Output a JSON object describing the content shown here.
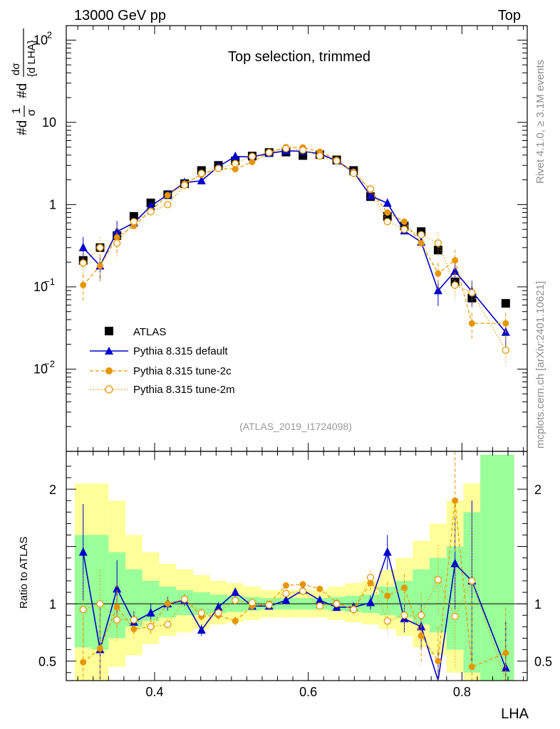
{
  "header": {
    "left": "13000 GeV pp",
    "right": "Top"
  },
  "side": {
    "rivet": "Rivet 4.1.0, ≥ 3.1M events",
    "mcplots": "mcplots.cern.ch [arXiv:2401.10621]"
  },
  "colors": {
    "atlas": "#000000",
    "default": "#0000cc",
    "tune2c": "#e69500",
    "tune2m": "#e69500",
    "band_inner": "#99ff99",
    "band_outer": "#ffff99"
  },
  "chart_data": {
    "type": "line",
    "title": "Top selection, trimmed",
    "analysis_id": "(ATLAS_2019_I1724098)",
    "xlabel": "LHA",
    "ylabel": "1/σ dσ/d LHA",
    "ylabel_parts": {
      "d": "d",
      "sigma": "σ",
      "one": "1",
      "hash": "#",
      "dlha": "{d LHA}"
    },
    "ratio_ylabel": "Ratio to ATLAS",
    "xlim": [
      0.285,
      0.885
    ],
    "ylim": [
      0.001,
      150
    ],
    "ratio_ylim": [
      0.33,
      2.33
    ],
    "yscale": "log",
    "x_ticks": [
      {
        "v": 0.4,
        "label": "0.4"
      },
      {
        "v": 0.6,
        "label": "0.6"
      },
      {
        "v": 0.8,
        "label": "0.8"
      }
    ],
    "y_ticks": [
      {
        "v": 100,
        "base": "10",
        "exp": "2"
      },
      {
        "v": 10,
        "base": "10",
        "exp": ""
      },
      {
        "v": 1,
        "base": "1",
        "exp": ""
      },
      {
        "v": 0.1,
        "base": "10",
        "exp": "−1"
      },
      {
        "v": 0.01,
        "base": "10",
        "exp": "−2"
      }
    ],
    "ratio_ticks": [
      {
        "v": 2,
        "label": "2"
      },
      {
        "v": 1,
        "label": "1"
      },
      {
        "v": 0.5,
        "label": "0.5"
      }
    ],
    "x": [
      0.307,
      0.329,
      0.351,
      0.373,
      0.395,
      0.417,
      0.439,
      0.461,
      0.483,
      0.505,
      0.527,
      0.549,
      0.571,
      0.593,
      0.615,
      0.637,
      0.659,
      0.681,
      0.703,
      0.725,
      0.747,
      0.769,
      0.791,
      0.813,
      0.835,
      0.857
    ],
    "band_edges": [
      0.296,
      0.318,
      0.34,
      0.362,
      0.384,
      0.406,
      0.428,
      0.45,
      0.472,
      0.494,
      0.516,
      0.538,
      0.56,
      0.582,
      0.604,
      0.626,
      0.648,
      0.67,
      0.692,
      0.714,
      0.736,
      0.758,
      0.78,
      0.802,
      0.824,
      0.846,
      0.868
    ],
    "band_inner": [
      [
        0.62,
        1.6
      ],
      [
        0.6,
        1.6
      ],
      [
        0.7,
        1.45
      ],
      [
        0.8,
        1.3
      ],
      [
        0.85,
        1.2
      ],
      [
        0.88,
        1.15
      ],
      [
        0.9,
        1.12
      ],
      [
        0.9,
        1.1
      ],
      [
        0.92,
        1.08
      ],
      [
        0.93,
        1.07
      ],
      [
        0.94,
        1.06
      ],
      [
        0.95,
        1.05
      ],
      [
        0.95,
        1.05
      ],
      [
        0.95,
        1.05
      ],
      [
        0.95,
        1.05
      ],
      [
        0.94,
        1.06
      ],
      [
        0.93,
        1.07
      ],
      [
        0.92,
        1.08
      ],
      [
        0.9,
        1.15
      ],
      [
        0.88,
        1.2
      ],
      [
        0.82,
        1.3
      ],
      [
        0.75,
        1.4
      ],
      [
        0.6,
        1.5
      ],
      [
        0.4,
        1.8
      ],
      [
        0.3,
        2.3
      ],
      [
        0.3,
        2.3
      ]
    ],
    "band_outer": [
      [
        0.3,
        2.05
      ],
      [
        0.3,
        2.05
      ],
      [
        0.45,
        1.9
      ],
      [
        0.55,
        1.6
      ],
      [
        0.65,
        1.45
      ],
      [
        0.72,
        1.35
      ],
      [
        0.75,
        1.3
      ],
      [
        0.78,
        1.25
      ],
      [
        0.82,
        1.2
      ],
      [
        0.84,
        1.18
      ],
      [
        0.86,
        1.15
      ],
      [
        0.88,
        1.12
      ],
      [
        0.88,
        1.12
      ],
      [
        0.88,
        1.12
      ],
      [
        0.88,
        1.12
      ],
      [
        0.86,
        1.15
      ],
      [
        0.84,
        1.18
      ],
      [
        0.82,
        1.2
      ],
      [
        0.78,
        1.3
      ],
      [
        0.72,
        1.4
      ],
      [
        0.62,
        1.55
      ],
      [
        0.55,
        1.7
      ],
      [
        0.4,
        1.9
      ],
      [
        0.3,
        2.05
      ],
      [
        0.3,
        2.3
      ],
      [
        0.3,
        2.3
      ]
    ],
    "series": [
      {
        "name": "ATLAS",
        "marker": "square",
        "values": [
          0.21,
          0.3,
          0.42,
          0.72,
          1.05,
          1.32,
          1.8,
          2.6,
          3.0,
          3.4,
          3.9,
          4.3,
          4.35,
          3.95,
          4.05,
          3.5,
          2.6,
          1.25,
          0.72,
          0.55,
          0.47,
          0.28,
          0.115,
          0.073,
          null,
          0.063
        ]
      },
      {
        "name": "Pythia 8.315 default",
        "marker": "triangle",
        "line": "solid",
        "values": [
          0.3,
          0.18,
          0.47,
          0.6,
          0.96,
          1.32,
          1.85,
          1.95,
          2.9,
          3.85,
          3.8,
          4.2,
          4.5,
          4.45,
          4.15,
          3.4,
          2.5,
          1.28,
          1.04,
          0.48,
          0.35,
          0.09,
          0.155,
          0.088,
          null,
          0.028
        ],
        "ratio": [
          1.45,
          0.6,
          1.13,
          0.84,
          0.92,
          1.0,
          1.03,
          0.77,
          0.97,
          1.1,
          0.98,
          0.98,
          1.03,
          1.12,
          1.03,
          0.97,
          0.97,
          1.01,
          1.45,
          0.87,
          0.8,
          0.3,
          1.35,
          1.2,
          null,
          0.44
        ],
        "ratio_err": [
          0.42,
          0.4,
          0.25,
          0.1,
          0.08,
          0.06,
          0.05,
          0.05,
          0.04,
          0.04,
          0.03,
          0.03,
          0.03,
          0.03,
          0.03,
          0.03,
          0.04,
          0.06,
          0.15,
          0.12,
          0.2,
          0.3,
          0.4,
          0.7,
          null,
          0.4
        ]
      },
      {
        "name": "Pythia 8.315 tune-2c",
        "marker": "circle",
        "line": "dashed",
        "values": [
          0.105,
          0.18,
          0.4,
          0.55,
          0.84,
          1.3,
          1.8,
          2.3,
          2.75,
          2.7,
          3.3,
          4.3,
          5.0,
          4.95,
          4.4,
          3.5,
          2.5,
          1.5,
          0.8,
          0.62,
          0.34,
          0.145,
          0.21,
          0.036,
          null,
          0.036
        ],
        "ratio": [
          0.49,
          0.61,
          0.97,
          0.78,
          0.8,
          1.0,
          1.04,
          0.89,
          0.9,
          0.85,
          0.98,
          1.0,
          1.16,
          1.17,
          1.13,
          1.01,
          0.95,
          1.18,
          1.07,
          1.14,
          0.72,
          0.5,
          1.9,
          0.45,
          null,
          0.57
        ],
        "ratio_err": [
          0.4,
          0.38,
          0.2,
          0.08,
          0.07,
          0.05,
          0.05,
          0.04,
          0.04,
          0.04,
          0.03,
          0.03,
          0.03,
          0.03,
          0.03,
          0.03,
          0.04,
          0.06,
          0.12,
          0.12,
          0.25,
          0.3,
          0.45,
          0.6,
          null,
          0.4
        ]
      },
      {
        "name": "Pythia 8.315 tune-2m",
        "marker": "open-circle",
        "line": "dotted",
        "values": [
          0.195,
          0.3,
          0.34,
          0.62,
          0.82,
          1.0,
          1.72,
          2.4,
          2.75,
          3.15,
          3.85,
          4.3,
          4.8,
          4.6,
          3.9,
          3.4,
          2.4,
          1.55,
          0.62,
          0.5,
          0.43,
          0.34,
          0.105,
          0.085,
          null,
          0.017
        ],
        "ratio": [
          0.95,
          1.0,
          0.86,
          0.86,
          0.8,
          0.82,
          1.04,
          0.92,
          0.92,
          1.03,
          1.01,
          0.99,
          1.09,
          1.11,
          0.98,
          1.0,
          0.95,
          1.23,
          0.85,
          0.9,
          0.9,
          1.21,
          0.89,
          1.2,
          null,
          0.27
        ],
        "ratio_err": [
          0.3,
          0.3,
          0.2,
          0.08,
          0.06,
          0.05,
          0.04,
          0.04,
          0.04,
          0.03,
          0.03,
          0.03,
          0.03,
          0.03,
          0.03,
          0.03,
          0.04,
          0.06,
          0.12,
          0.15,
          0.2,
          0.3,
          0.45,
          0.6,
          null,
          0.4
        ]
      }
    ]
  }
}
